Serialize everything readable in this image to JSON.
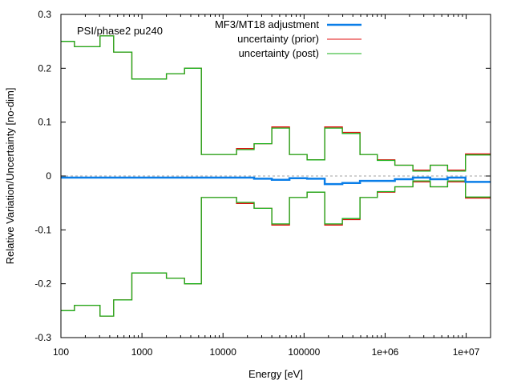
{
  "chart_data": {
    "type": "line",
    "title": "PSI/phase2 pu240",
    "xlabel": "Energy [eV]",
    "ylabel": "Relative Variation/Uncertainty [no-dim]",
    "xscale": "log",
    "xlim": [
      100,
      20000000
    ],
    "ylim": [
      -0.3,
      0.3
    ],
    "xticks": [
      100,
      1000,
      10000,
      100000,
      1000000,
      10000000
    ],
    "xtick_labels": [
      "100",
      "1000",
      "10000",
      "100000",
      "1e+06",
      "1e+07"
    ],
    "yticks": [
      -0.3,
      -0.2,
      -0.1,
      0,
      0.1,
      0.2,
      0.3
    ],
    "ytick_labels": [
      "-0.3",
      "-0.2",
      "-0.1",
      "0",
      "0.1",
      "0.2",
      "0.3"
    ],
    "grid": false,
    "legend_position": "top-right",
    "bin_edges": [
      100,
      147,
      304,
      447,
      750,
      2000,
      3350,
      5400,
      14700,
      24200,
      40000,
      66000,
      109000,
      180000,
      297000,
      490000,
      800000,
      1320000,
      2200000,
      3600000,
      5900000,
      9800000,
      20000000
    ],
    "series": [
      {
        "name": "MF3/MT18 adjustment",
        "color": "#0a7ee8",
        "style": "step",
        "values": [
          -0.003,
          -0.003,
          -0.003,
          -0.003,
          -0.003,
          -0.003,
          -0.003,
          -0.003,
          -0.003,
          -0.005,
          -0.007,
          -0.004,
          -0.005,
          -0.015,
          -0.013,
          -0.009,
          -0.009,
          -0.006,
          -0.003,
          -0.006,
          -0.003,
          -0.011
        ]
      },
      {
        "name": "uncertainty (prior)",
        "color": "#e01010",
        "style": "step-symmetric",
        "values": [
          0.25,
          0.24,
          0.26,
          0.23,
          0.18,
          0.19,
          0.2,
          0.04,
          0.051,
          0.06,
          0.091,
          0.04,
          0.03,
          0.091,
          0.081,
          0.04,
          0.03,
          0.02,
          0.011,
          0.02,
          0.011,
          0.041
        ]
      },
      {
        "name": "uncertainty (post)",
        "color": "#1ab01a",
        "style": "step-symmetric",
        "values": [
          0.25,
          0.24,
          0.26,
          0.23,
          0.18,
          0.19,
          0.2,
          0.04,
          0.049,
          0.06,
          0.089,
          0.04,
          0.03,
          0.089,
          0.079,
          0.04,
          0.029,
          0.02,
          0.009,
          0.02,
          0.009,
          0.039
        ]
      }
    ],
    "zero_line": {
      "value": 0,
      "color": "#a0a0a0",
      "style": "dashed"
    }
  }
}
